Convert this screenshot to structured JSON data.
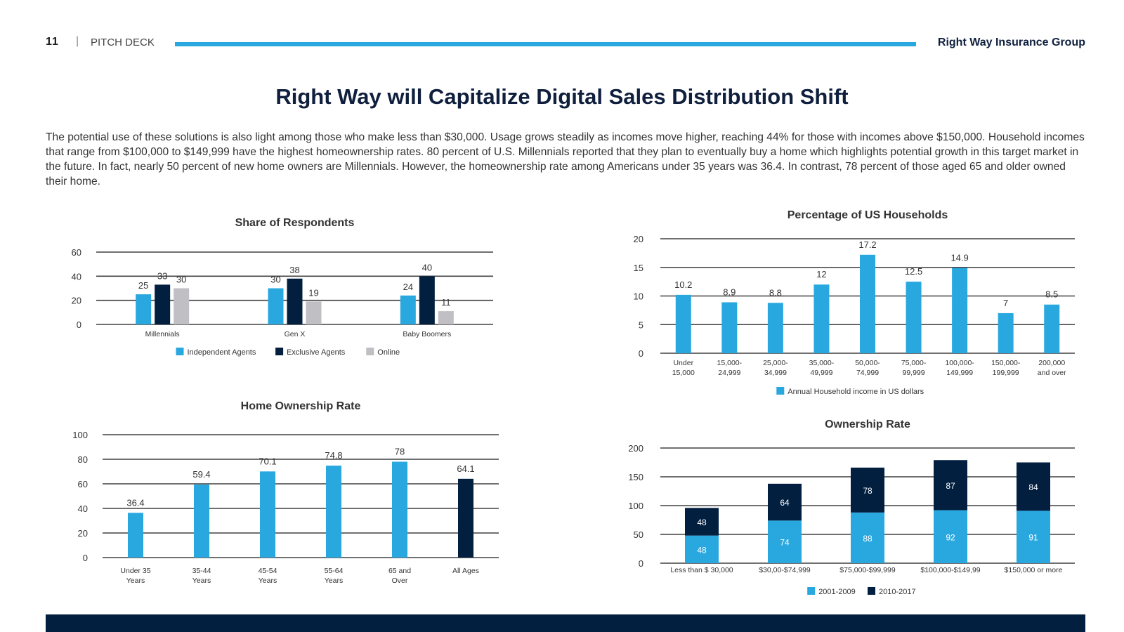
{
  "header": {
    "page_number": "11",
    "separator": "|",
    "deck_label": "PITCH DECK",
    "company": "Right Way Insurance Group",
    "accent_color": "#29a8e0"
  },
  "slide": {
    "title": "Right Way will Capitalize Digital Sales Distribution Shift",
    "intro": "The potential use of these solutions is also light among those who make less than $30,000. Usage grows steadily as incomes move higher, reaching 44% for those with incomes above $150,000. Household incomes that range from $100,000 to $149,999 have the highest homeownership rates. 80 percent of U.S. Millennials reported that they plan to eventually buy a home which highlights potential growth in this target market in the future. In fact, nearly 50 percent of new home owners are Millennials. However, the homeownership rate among Americans under 35 years was 36.4. In contrast, 78 percent of those aged 65 and older owned their home."
  },
  "colors": {
    "light_blue": "#29a8e0",
    "navy": "#021f40",
    "gray": "#bfbfc4"
  },
  "chart_data": [
    {
      "id": "share",
      "type": "bar",
      "title": "Share of Respondents",
      "categories": [
        "Millennials",
        "Gen X",
        "Baby Boomers"
      ],
      "series": [
        {
          "name": "Independent Agents",
          "color": "#29a8e0",
          "values": [
            25,
            30,
            24
          ]
        },
        {
          "name": "Exclusive Agents",
          "color": "#021f40",
          "values": [
            33,
            38,
            40
          ]
        },
        {
          "name": "Online",
          "color": "#bfbfc4",
          "values": [
            30,
            19,
            11
          ]
        }
      ],
      "yticks": [
        0,
        20,
        40,
        60
      ],
      "ylim": [
        0,
        60
      ],
      "grid": true,
      "legend": "bottom"
    },
    {
      "id": "households",
      "type": "bar",
      "title": "Percentage of US Households",
      "categories": [
        [
          "Under",
          "15,000"
        ],
        [
          "15,000-",
          "24,999"
        ],
        [
          "25,000-",
          "34,999"
        ],
        [
          "35,000-",
          "49,999"
        ],
        [
          "50,000-",
          "74,999"
        ],
        [
          "75,000-",
          "99,999"
        ],
        [
          "100,000-",
          "149,999"
        ],
        [
          "150,000-",
          "199,999"
        ],
        [
          "200,000",
          "and over"
        ]
      ],
      "series": [
        {
          "name": "Annual Household income in US dollars",
          "color": "#29a8e0",
          "values": [
            10.2,
            8.9,
            8.8,
            12,
            17.2,
            12.5,
            14.9,
            7,
            8.5
          ]
        }
      ],
      "yticks": [
        0,
        5,
        10,
        15,
        20
      ],
      "ylim": [
        0,
        20
      ],
      "grid": true,
      "legend": "bottom"
    },
    {
      "id": "homeownership",
      "type": "bar",
      "title": "Home Ownership Rate",
      "categories": [
        [
          "Under 35",
          "Years"
        ],
        [
          "35-44",
          "Years"
        ],
        [
          "45-54",
          "Years"
        ],
        [
          "55-64",
          "Years"
        ],
        [
          "65 and",
          "Over"
        ],
        [
          "All Ages"
        ]
      ],
      "series": [
        {
          "name": "Home Ownership Rate",
          "values": [
            36.4,
            59.4,
            70.1,
            74.8,
            78,
            64.1
          ],
          "colors": [
            "#29a8e0",
            "#29a8e0",
            "#29a8e0",
            "#29a8e0",
            "#29a8e0",
            "#021f40"
          ]
        }
      ],
      "yticks": [
        0,
        20,
        40,
        60,
        80,
        100
      ],
      "ylim": [
        0,
        100
      ],
      "grid": true,
      "legend": "none"
    },
    {
      "id": "ownership",
      "type": "bar",
      "stacked": true,
      "title": "Ownership Rate",
      "categories": [
        "Less than $ 30,000",
        "$30,00-$74,999",
        "$75,000-$99,999",
        "$100,000-$149,99",
        "$150,000 or more"
      ],
      "series": [
        {
          "name": "2001-2009",
          "color": "#29a8e0",
          "values": [
            48,
            74,
            88,
            92,
            91
          ]
        },
        {
          "name": "2010-2017",
          "color": "#021f40",
          "values": [
            48,
            64,
            78,
            87,
            84
          ]
        }
      ],
      "yticks": [
        0,
        50,
        100,
        150,
        200
      ],
      "ylim": [
        0,
        200
      ],
      "grid": true,
      "legend": "bottom"
    }
  ]
}
